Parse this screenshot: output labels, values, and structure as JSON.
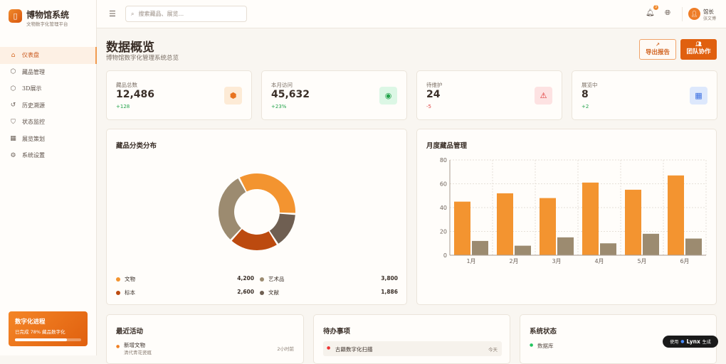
{
  "brand": {
    "title": "博物馆系统",
    "subtitle": "文物数字化管理平台"
  },
  "sidebar": {
    "items": [
      {
        "label": "仪表盘",
        "icon": "home-icon",
        "glyph": "⌂",
        "active": true
      },
      {
        "label": "藏品管理",
        "icon": "box-icon",
        "glyph": "⬡"
      },
      {
        "label": "3D展示",
        "icon": "cube-icon",
        "glyph": "⬡"
      },
      {
        "label": "历史溯源",
        "icon": "history-icon",
        "glyph": "↺"
      },
      {
        "label": "状态监控",
        "icon": "shield-icon",
        "glyph": "⛉"
      },
      {
        "label": "展览策划",
        "icon": "calendar-icon",
        "glyph": "▦"
      },
      {
        "label": "系统设置",
        "icon": "gear-icon",
        "glyph": "⚙"
      }
    ]
  },
  "progress": {
    "title": "数字化进程",
    "text": "已完成 78% 藏品数字化",
    "percent": 78
  },
  "header": {
    "search_placeholder": "搜索藏品、展览...",
    "notification_count": "3",
    "user_name": "馆长",
    "user_role": "张文博"
  },
  "page": {
    "title": "数据概览",
    "subtitle": "博物馆数字化管理系统总览",
    "export_label": "导出报告",
    "team_label": "团队协作"
  },
  "stats": [
    {
      "label": "藏品总数",
      "value": "12,486",
      "change": "+128",
      "icon": "package-icon",
      "glyph": "⬢",
      "color": "#e8731f",
      "bg": "#fdebd6",
      "change_color": "#22a34a"
    },
    {
      "label": "本月访问",
      "value": "45,632",
      "change": "+23%",
      "icon": "eye-icon",
      "glyph": "◉",
      "color": "#22a34a",
      "bg": "#dcf7e5",
      "change_color": "#22a34a"
    },
    {
      "label": "待维护",
      "value": "24",
      "change": "-5",
      "icon": "alert-icon",
      "glyph": "⚠",
      "color": "#dc2626",
      "bg": "#fde2e2",
      "change_color": "#e04545"
    },
    {
      "label": "展览中",
      "value": "8",
      "change": "+2",
      "icon": "calendar-icon",
      "glyph": "▦",
      "color": "#3b6fe0",
      "bg": "#dde8fc",
      "change_color": "#22a34a"
    }
  ],
  "donut": {
    "title": "藏品分类分布",
    "items": [
      {
        "label": "文物",
        "value": 4200,
        "display": "4,200",
        "color": "#f39430"
      },
      {
        "label": "艺术品",
        "value": 3800,
        "display": "3,800",
        "color": "#9c8b70"
      },
      {
        "label": "标本",
        "value": 2600,
        "display": "2,600",
        "color": "#bc4a0f"
      },
      {
        "label": "文献",
        "value": 1886,
        "display": "1,886",
        "color": "#6f5f52"
      }
    ]
  },
  "chart_data": {
    "type": "bar",
    "title": "月度藏品管理",
    "categories": [
      "1月",
      "2月",
      "3月",
      "4月",
      "5月",
      "6月"
    ],
    "series": [
      {
        "values": [
          45,
          52,
          48,
          61,
          55,
          67
        ],
        "color": "#f39430"
      },
      {
        "values": [
          12,
          8,
          15,
          10,
          18,
          14
        ],
        "color": "#9c8b70"
      }
    ],
    "yticks": [
      "0",
      "20",
      "40",
      "60",
      "80"
    ],
    "ylim": [
      0,
      80
    ],
    "grid": true
  },
  "activity": {
    "title": "最近活动",
    "items": [
      {
        "title": "新增文物",
        "desc": "清代青花瓷瓶",
        "time": "2小时前"
      }
    ]
  },
  "todos": {
    "title": "待办事项",
    "items": [
      {
        "label": "古籍数字化扫描",
        "due": "今天"
      }
    ]
  },
  "system": {
    "title": "系统状态",
    "items": [
      {
        "label": "数据库"
      }
    ]
  },
  "lynx": {
    "prefix": "使用",
    "name": "Lynx",
    "suffix": "生成"
  }
}
